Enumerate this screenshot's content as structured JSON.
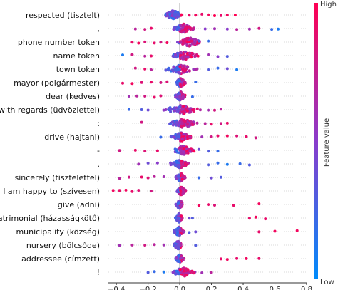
{
  "chart_data": {
    "type": "scatter",
    "subtype": "shap-beeswarm",
    "xlim": [
      -0.45,
      0.8
    ],
    "xticks": [
      -0.4,
      -0.2,
      0.0,
      0.2,
      0.4,
      0.6,
      0.8
    ],
    "xtick_labels": [
      "−0.4",
      "−0.2",
      "0.0",
      "0.2",
      "0.4",
      "0.6",
      "0.8"
    ],
    "colorbar": {
      "high_label": "High",
      "low_label": "Low",
      "axis_label": "Feature value",
      "high_color": "#ff0052",
      "low_color": "#008bfb"
    },
    "features": [
      {
        "label": "respected (tisztelt)",
        "core": [
          -0.1,
          0.02
        ],
        "extra": [
          [
            0.06,
            0.9
          ],
          [
            0.1,
            0.95
          ],
          [
            0.14,
            0.9
          ],
          [
            0.18,
            0.95
          ],
          [
            0.22,
            1
          ],
          [
            0.26,
            0.9
          ],
          [
            0.3,
            0.95
          ],
          [
            0.35,
            1
          ]
        ]
      },
      {
        "label": ",",
        "core": [
          -0.05,
          0.1
        ],
        "extra": [
          [
            -0.28,
            0.7
          ],
          [
            -0.22,
            0.8
          ],
          [
            -0.18,
            0.9
          ],
          [
            0.16,
            0.5
          ],
          [
            0.22,
            0.6
          ],
          [
            0.3,
            0.5
          ],
          [
            0.36,
            0.7
          ],
          [
            0.44,
            0.6
          ],
          [
            0.5,
            0.8
          ],
          [
            0.58,
            0.2
          ],
          [
            0.62,
            0.1
          ]
        ]
      },
      {
        "label": "phone number token",
        "core": [
          -0.02,
          0.14
        ],
        "extra": [
          [
            -0.3,
            0.9
          ],
          [
            -0.26,
            0.95
          ],
          [
            -0.22,
            0.85
          ],
          [
            -0.16,
            0.9
          ],
          [
            -0.12,
            0.8
          ],
          [
            -0.08,
            0.95
          ],
          [
            0.12,
            0.3
          ],
          [
            0.18,
            0.2
          ]
        ]
      },
      {
        "label": "name token",
        "core": [
          -0.06,
          0.12
        ],
        "extra": [
          [
            -0.36,
            0.1
          ],
          [
            -0.3,
            0.8
          ],
          [
            -0.22,
            0.7
          ],
          [
            -0.18,
            0.9
          ],
          [
            0.18,
            0.6
          ],
          [
            0.24,
            0.5
          ],
          [
            0.3,
            0.3
          ]
        ]
      },
      {
        "label": "town token",
        "core": [
          -0.1,
          0.12
        ],
        "extra": [
          [
            -0.28,
            0.8
          ],
          [
            -0.22,
            0.9
          ],
          [
            -0.18,
            0.7
          ],
          [
            0.18,
            0.3
          ],
          [
            0.24,
            0.2
          ],
          [
            0.3,
            0.4
          ],
          [
            0.36,
            0.1
          ]
        ]
      },
      {
        "label": "mayor (polgármester)",
        "core": [
          -0.03,
          0.04
        ],
        "extra": [
          [
            -0.36,
            0.9
          ],
          [
            -0.3,
            0.95
          ],
          [
            -0.24,
            0.85
          ],
          [
            -0.18,
            0.9
          ],
          [
            -0.12,
            0.8
          ],
          [
            -0.08,
            0.85
          ],
          [
            0.1,
            0.2
          ]
        ]
      },
      {
        "label": "dear (kedves)",
        "core": [
          -0.03,
          0.04
        ],
        "extra": [
          [
            -0.32,
            0.6
          ],
          [
            -0.27,
            0.7
          ],
          [
            -0.22,
            0.8
          ],
          [
            -0.16,
            0.9
          ],
          [
            -0.12,
            0.85
          ],
          [
            0.08,
            0.2
          ]
        ]
      },
      {
        "label": "with regards (üdvözlettel)",
        "core": [
          -0.12,
          0.14
        ],
        "extra": [
          [
            -0.32,
            0.2
          ],
          [
            -0.24,
            0.3
          ],
          [
            -0.2,
            0.4
          ],
          [
            0.18,
            0.6
          ],
          [
            0.22,
            0.8
          ],
          [
            0.26,
            0.7
          ]
        ]
      },
      {
        "label": ":",
        "core": [
          -0.08,
          0.12
        ],
        "extra": [
          [
            -0.24,
            0.8
          ],
          [
            0.16,
            0.7
          ],
          [
            0.2,
            0.9
          ],
          [
            0.26,
            0.8
          ],
          [
            0.3,
            0.9
          ]
        ]
      },
      {
        "label": "drive (hajtani)",
        "core": [
          -0.06,
          0.08
        ],
        "extra": [
          [
            -0.12,
            0.2
          ],
          [
            0.14,
            0.6
          ],
          [
            0.2,
            0.8
          ],
          [
            0.24,
            0.9
          ],
          [
            0.3,
            0.95
          ],
          [
            0.36,
            0.85
          ],
          [
            0.42,
            0.9
          ],
          [
            0.48,
            0.8
          ]
        ]
      },
      {
        "label": "-",
        "core": [
          -0.06,
          0.1
        ],
        "extra": [
          [
            -0.38,
            0.8
          ],
          [
            -0.28,
            0.9
          ],
          [
            -0.22,
            0.85
          ],
          [
            -0.14,
            0.9
          ],
          [
            0.12,
            0.4
          ],
          [
            0.18,
            0.3
          ],
          [
            0.24,
            0.2
          ]
        ]
      },
      {
        "label": ".",
        "core": [
          -0.06,
          0.06
        ],
        "extra": [
          [
            -0.26,
            0.6
          ],
          [
            -0.2,
            0.4
          ],
          [
            -0.14,
            0.5
          ],
          [
            0.18,
            0.3
          ],
          [
            0.24,
            0.2
          ],
          [
            0.3,
            0.1
          ],
          [
            0.38,
            0.2
          ],
          [
            0.44,
            0.3
          ]
        ]
      },
      {
        "label": "sincerely (tisztelettel)",
        "core": [
          -0.03,
          0.04
        ],
        "extra": [
          [
            -0.38,
            0.7
          ],
          [
            -0.32,
            0.8
          ],
          [
            -0.24,
            0.9
          ],
          [
            -0.2,
            0.85
          ],
          [
            -0.16,
            0.7
          ],
          [
            -0.1,
            0.6
          ],
          [
            0.12,
            0.2
          ],
          [
            0.2,
            0.4
          ],
          [
            0.26,
            0.3
          ]
        ]
      },
      {
        "label": "I am happy to (szívesen)",
        "core": [
          -0.02,
          0.04
        ],
        "extra": [
          [
            -0.42,
            0.95
          ],
          [
            -0.38,
            0.9
          ],
          [
            -0.34,
            0.95
          ],
          [
            -0.3,
            0.9
          ],
          [
            -0.26,
            0.85
          ],
          [
            -0.18,
            0.8
          ]
        ]
      },
      {
        "label": "give (adni)",
        "core": [
          -0.03,
          0.03
        ],
        "extra": [
          [
            0.12,
            0.95
          ],
          [
            0.18,
            0.9
          ],
          [
            0.22,
            0.85
          ],
          [
            0.34,
            0.9
          ],
          [
            0.5,
            0.95
          ]
        ]
      },
      {
        "label": "matrimonial (házasságkötő)",
        "core": [
          -0.03,
          0.02
        ],
        "extra": [
          [
            0.06,
            0.4
          ],
          [
            0.08,
            0.3
          ],
          [
            0.44,
            0.9
          ],
          [
            0.48,
            0.95
          ],
          [
            0.54,
            0.9
          ]
        ]
      },
      {
        "label": "municipality (község)",
        "core": [
          -0.04,
          0.03
        ],
        "extra": [
          [
            0.06,
            0.3
          ],
          [
            0.1,
            0.4
          ],
          [
            0.5,
            0.9
          ],
          [
            0.6,
            0.95
          ],
          [
            0.74,
            0.95
          ]
        ]
      },
      {
        "label": "nursery (bölcsőde)",
        "core": [
          -0.04,
          0.02
        ],
        "extra": [
          [
            -0.38,
            0.6
          ],
          [
            -0.3,
            0.7
          ],
          [
            -0.22,
            0.8
          ],
          [
            -0.16,
            0.7
          ],
          [
            -0.1,
            0.6
          ],
          [
            0.1,
            0.3
          ]
        ]
      },
      {
        "label": "addressee (címzett)",
        "core": [
          -0.03,
          0.03
        ],
        "extra": [
          [
            0.26,
            0.9
          ],
          [
            0.3,
            0.95
          ],
          [
            0.36,
            0.9
          ],
          [
            0.42,
            0.95
          ],
          [
            0.5,
            0.9
          ]
        ]
      },
      {
        "label": "!",
        "core": [
          -0.06,
          0.1
        ],
        "extra": [
          [
            -0.2,
            0.3
          ],
          [
            -0.16,
            0.2
          ],
          [
            -0.1,
            0.1
          ],
          [
            0.14,
            0.6
          ],
          [
            0.2,
            0.7
          ]
        ]
      }
    ]
  }
}
